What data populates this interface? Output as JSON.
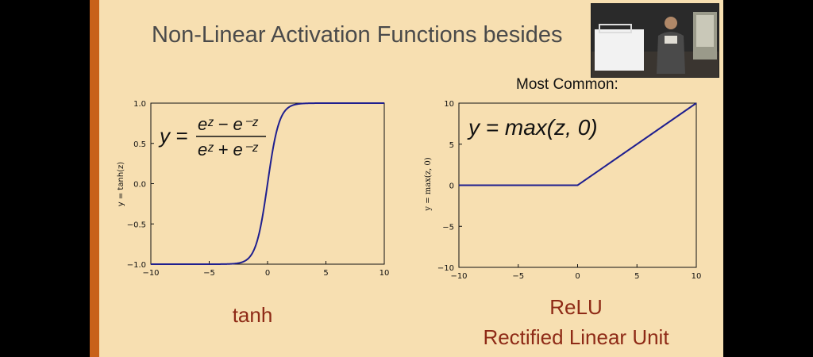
{
  "slide": {
    "title": "Non-Linear Activation Functions besides",
    "subtitle": "Most Common:",
    "accent_color": "#c8611a",
    "background_color": "#f7dfb1",
    "caption_color": "#8e2a16"
  },
  "left_plot": {
    "caption": "tanh",
    "ylabel": "y = tanh(z)",
    "formula": {
      "lhs": "y =",
      "numerator": "eᶻ − e⁻ᶻ",
      "denominator": "eᶻ + e⁻ᶻ"
    },
    "xticks": [
      "−10",
      "−5",
      "0",
      "5",
      "10"
    ],
    "yticks": [
      "1.0",
      "0.5",
      "0.0",
      "−0.5",
      "−1.0"
    ]
  },
  "right_plot": {
    "caption_line1": "ReLU",
    "caption_line2": "Rectified Linear Unit",
    "ylabel": "y = max(z, 0)",
    "formula": "y =  max(z, 0)",
    "xticks": [
      "−10",
      "−5",
      "0",
      "5",
      "10"
    ],
    "yticks": [
      "10",
      "5",
      "0",
      "−5",
      "−10"
    ]
  },
  "chart_data": [
    {
      "type": "line",
      "series": [
        {
          "function": "tanh",
          "x_range": [
            -10,
            10
          ],
          "color": "#1f1f8f"
        }
      ],
      "xlim": [
        -10,
        10
      ],
      "ylim": [
        -1,
        1
      ],
      "ylabel": "y = tanh(z)",
      "grid": false
    },
    {
      "type": "line",
      "series": [
        {
          "x": [
            -10,
            0,
            10
          ],
          "y": [
            0,
            0,
            10
          ],
          "color": "#1f1f8f"
        }
      ],
      "xlim": [
        -10,
        10
      ],
      "ylim": [
        -10,
        10
      ],
      "ylabel": "y = max(z, 0)",
      "grid": false
    }
  ]
}
